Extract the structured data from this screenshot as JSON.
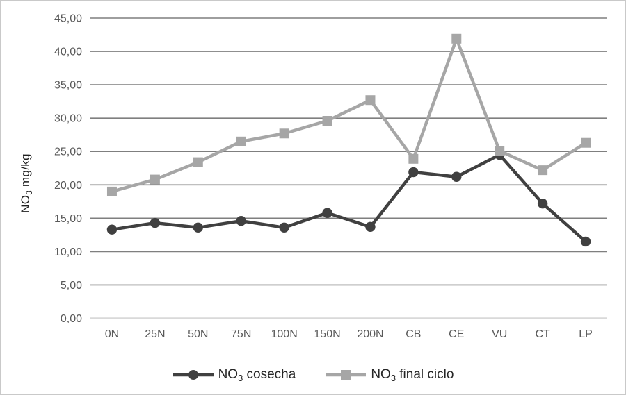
{
  "chart_data": {
    "type": "line",
    "title": "",
    "xlabel": "",
    "ylabel": "NO3 mg/kg",
    "ylabel_parts": {
      "prefix": "NO",
      "sub": "3",
      "suffix": " mg/kg"
    },
    "ylim": [
      0,
      45
    ],
    "ytick_step": 5,
    "ytick_labels": [
      "0,00",
      "5,00",
      "10,00",
      "15,00",
      "20,00",
      "25,00",
      "30,00",
      "35,00",
      "40,00",
      "45,00"
    ],
    "grid": true,
    "legend_position": "bottom",
    "categories": [
      "0N",
      "25N",
      "50N",
      "75N",
      "100N",
      "150N",
      "200N",
      "CB",
      "CE",
      "VU",
      "CT",
      "LP"
    ],
    "series": [
      {
        "name": "NO3 cosecha",
        "name_parts": {
          "prefix": "NO",
          "sub": "3",
          "suffix": " cosecha"
        },
        "marker": "circle",
        "color": "#404040",
        "values": [
          13.3,
          14.3,
          13.6,
          14.6,
          13.6,
          15.8,
          13.7,
          21.9,
          21.2,
          24.5,
          17.2,
          11.5
        ]
      },
      {
        "name": "NO3 final ciclo",
        "name_parts": {
          "prefix": "NO",
          "sub": "3",
          "suffix": " final ciclo"
        },
        "marker": "square",
        "color": "#a6a6a6",
        "values": [
          19.0,
          20.8,
          23.4,
          26.5,
          27.7,
          29.6,
          32.7,
          23.9,
          41.9,
          25.1,
          22.2,
          26.3
        ]
      }
    ]
  },
  "colors": {
    "background": "#ffffff",
    "frame_border": "#c9c9c9",
    "grid": "#7f7f7f",
    "axis_line": "#d9d9d9",
    "tick_text": "#595959",
    "title_text": "#1f1f1f",
    "legend_text": "#262626"
  }
}
